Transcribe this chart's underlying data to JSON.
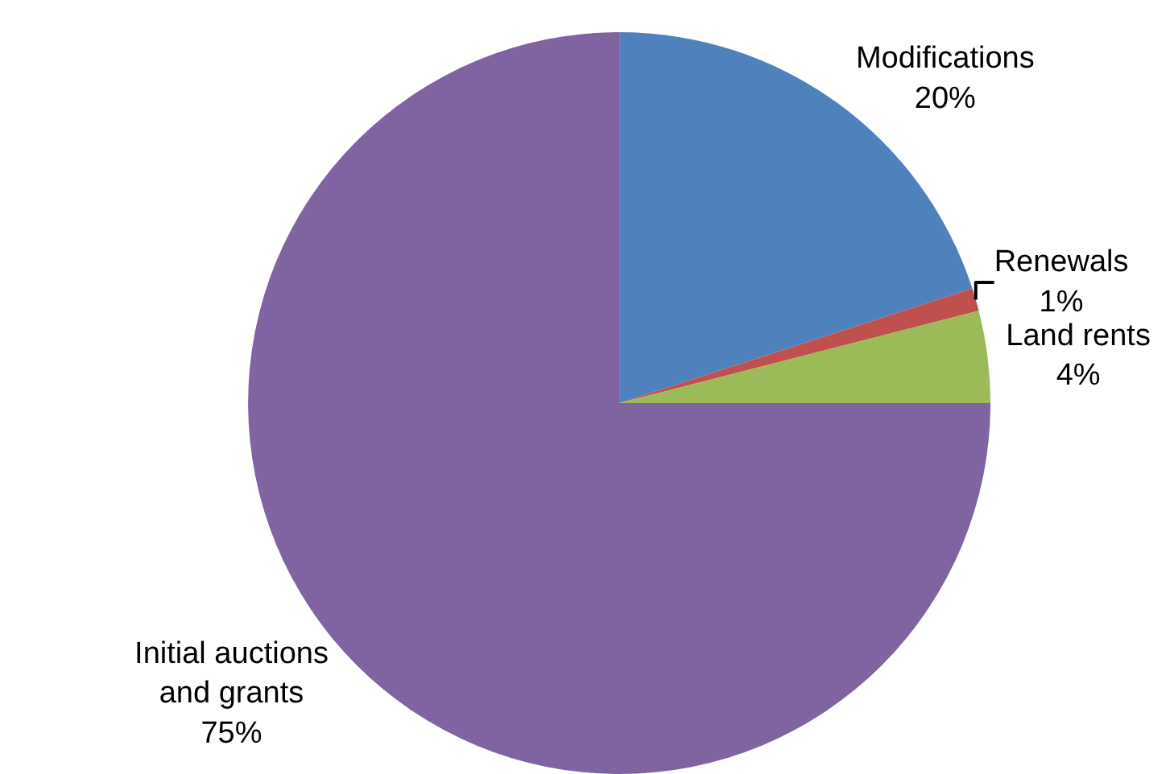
{
  "chart_data": {
    "type": "pie",
    "categories": [
      "Modifications",
      "Renewals",
      "Land rents",
      "Initial auctions and grants"
    ],
    "values": [
      20,
      1,
      4,
      75
    ],
    "value_labels": [
      "20%",
      "1%",
      "4%",
      "75%"
    ],
    "colors": [
      "#4f81bd",
      "#c0504d",
      "#9bbb59",
      "#8064a2"
    ],
    "legend": false
  }
}
